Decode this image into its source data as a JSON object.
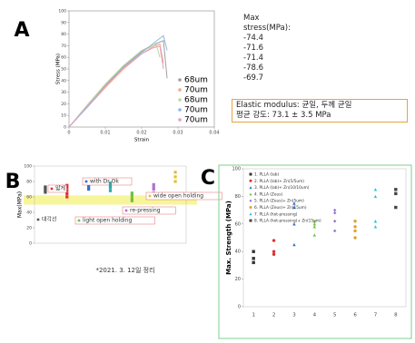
{
  "chart_data": [
    {
      "type": "line",
      "panel_label": "A",
      "y_label": "Stress (MPa)",
      "x_label": "Strain",
      "xlim": [
        0,
        0.04
      ],
      "xticks": [
        0,
        0.01,
        0.02,
        0.03,
        0.04
      ],
      "ylim": [
        0,
        100
      ],
      "yticks": [
        0,
        10,
        20,
        30,
        40,
        50,
        60,
        70,
        80,
        90,
        100
      ],
      "series": [
        {
          "name": "68um",
          "color": "#9e9e9e",
          "x": [
            0,
            0.005,
            0.01,
            0.015,
            0.02,
            0.024,
            0.026,
            0.027
          ],
          "values": [
            0,
            18,
            36,
            52,
            65,
            72,
            74.4,
            42
          ]
        },
        {
          "name": "70um",
          "color": "#f4a582",
          "x": [
            0,
            0.005,
            0.01,
            0.015,
            0.02,
            0.023,
            0.025,
            0.026
          ],
          "values": [
            0,
            17,
            34,
            50,
            63,
            69,
            71.6,
            55
          ]
        },
        {
          "name": "68um",
          "color": "#b8d9a0",
          "x": [
            0,
            0.005,
            0.01,
            0.015,
            0.02,
            0.022,
            0.024,
            0.025
          ],
          "values": [
            0,
            19,
            37,
            53,
            66,
            69,
            71.4,
            60
          ]
        },
        {
          "name": "70um",
          "color": "#8fb8e0",
          "x": [
            0,
            0.005,
            0.01,
            0.015,
            0.02,
            0.024,
            0.026,
            0.027
          ],
          "values": [
            0,
            17,
            35,
            51,
            64,
            74,
            78.6,
            66
          ]
        },
        {
          "name": "70um",
          "color": "#e0a0c8",
          "x": [
            0,
            0.005,
            0.01,
            0.015,
            0.02,
            0.023,
            0.025,
            0.026
          ],
          "values": [
            0,
            18,
            35,
            51,
            63,
            68,
            69.7,
            50
          ]
        }
      ],
      "max_stress_title": "Max stress(MPa):",
      "max_stress_values": [
        -74.4,
        -71.6,
        -71.4,
        -78.6,
        -69.7
      ],
      "notes": [
        "Elastic modulus: 균일, 두께 균일",
        "평균 강도: 73.1 ± 3.5 MPa"
      ]
    },
    {
      "type": "scatter",
      "panel_label": "B",
      "y_label": "Max(MPa)",
      "ylim": [
        0,
        100
      ],
      "yticks": [
        0,
        20,
        40,
        60,
        80,
        100
      ],
      "band": [
        50,
        62
      ],
      "band_color": "#f7f59a",
      "series": [
        {
          "name": "대각선",
          "color": "#555555",
          "values": [
            66,
            68,
            70,
            72,
            73
          ]
        },
        {
          "name": "얇게",
          "color": "#e03030",
          "values": [
            60,
            64,
            68,
            72,
            75
          ]
        },
        {
          "name": "with Dr Ok",
          "color": "#3070d0",
          "values": [
            70,
            73,
            76,
            78,
            80
          ]
        },
        {
          "color": "#30a8a8",
          "values": [
            68,
            72,
            75,
            78
          ]
        },
        {
          "name": "light open holding",
          "color": "#70c040",
          "values": [
            55,
            58,
            62,
            65
          ]
        },
        {
          "name": "re-pressing",
          "color": "#b070d0",
          "values": [
            60,
            65,
            70,
            73,
            76
          ]
        },
        {
          "name": "wide open holding",
          "color": "#e0c030",
          "values": [
            80,
            86,
            92
          ]
        }
      ],
      "note": "*2021. 3. 12일 정리"
    },
    {
      "type": "scatter",
      "panel_label": "C",
      "y_label": "Max. Strength (MPa)",
      "ylim": [
        0,
        100
      ],
      "yticks": [
        0,
        20,
        40,
        60,
        80,
        100
      ],
      "categories": [
        "1",
        "2",
        "3",
        "4",
        "5",
        "6",
        "7",
        "8"
      ],
      "series": [
        {
          "name": "1. PLLA (lab)",
          "color": "#333333",
          "marker": "square",
          "values": [
            32,
            35,
            40
          ]
        },
        {
          "name": "2. PLLA (lab)+ Zn(5/5um)",
          "color": "#e03030",
          "marker": "circle",
          "values": [
            38,
            40,
            48
          ]
        },
        {
          "name": "3. PLLA (lab)+ Zn(10/10um)",
          "color": "#3070d0",
          "marker": "triangle",
          "values": [
            45,
            60,
            72,
            75
          ]
        },
        {
          "name": "4. PLLA (Zeus)",
          "color": "#70c040",
          "marker": "triangle",
          "values": [
            52,
            58,
            60,
            62
          ]
        },
        {
          "name": "5. PLLA (Zeus)+ Zn(5um)",
          "color": "#9070d0",
          "marker": "diamond",
          "values": [
            55,
            62,
            68,
            70
          ]
        },
        {
          "name": "6. PLLA (Zeus)+ Zn(15um)",
          "color": "#e0a030",
          "marker": "circle",
          "values": [
            50,
            55,
            58,
            62
          ]
        },
        {
          "name": "7. PLLA (hot-pressing)",
          "color": "#30c0d0",
          "marker": "triangle",
          "values": [
            58,
            62,
            80,
            85
          ]
        },
        {
          "name": "8. PLLA (hot-pressing)+ Zn(15um)",
          "color": "#444444",
          "marker": "square",
          "values": [
            72,
            82,
            85
          ]
        }
      ]
    }
  ]
}
